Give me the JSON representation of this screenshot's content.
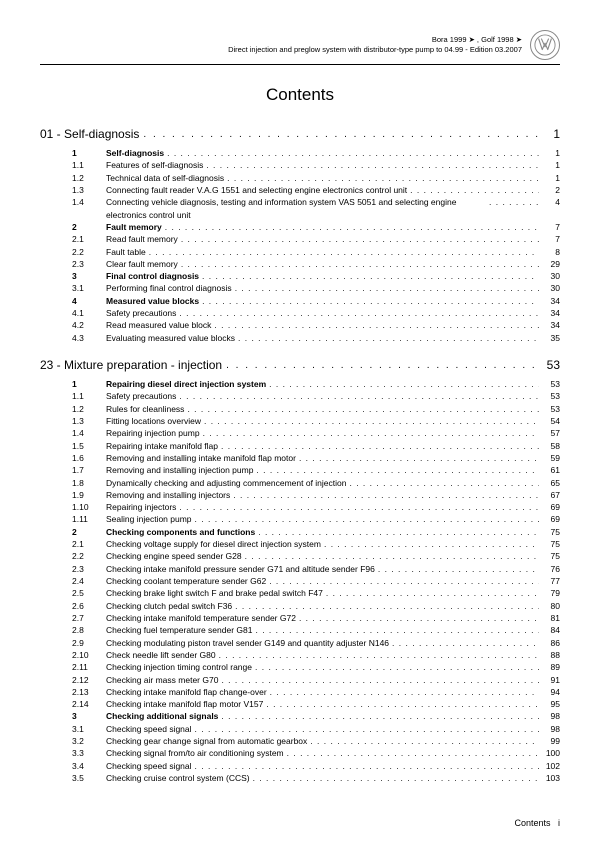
{
  "header": {
    "line1": "Bora 1999 ➤ , Golf 1998 ➤",
    "line2": "Direct injection and preglow system with distributor-type pump to 04.99 - Edition 03.2007"
  },
  "title": "Contents",
  "chapters": [
    {
      "num": "01",
      "title": "Self-diagnosis",
      "page": "1",
      "items": [
        {
          "n": "1",
          "t": "Self-diagnosis",
          "p": "1",
          "b": true
        },
        {
          "n": "1.1",
          "t": "Features of self-diagnosis",
          "p": "1"
        },
        {
          "n": "1.2",
          "t": "Technical data of self-diagnosis",
          "p": "1"
        },
        {
          "n": "1.3",
          "t": "Connecting fault reader V.A.G 1551 and selecting engine electronics control unit",
          "p": "2"
        },
        {
          "n": "1.4",
          "t": "Connecting vehicle diagnosis, testing and information system VAS 5051 and selecting engine electronics control unit",
          "p": "4",
          "ml": true
        },
        {
          "n": "2",
          "t": "Fault memory",
          "p": "7",
          "b": true
        },
        {
          "n": "2.1",
          "t": "Read fault memory",
          "p": "7"
        },
        {
          "n": "2.2",
          "t": "Fault table",
          "p": "8"
        },
        {
          "n": "2.3",
          "t": "Clear fault memory",
          "p": "29"
        },
        {
          "n": "3",
          "t": "Final control diagnosis",
          "p": "30",
          "b": true
        },
        {
          "n": "3.1",
          "t": "Performing final control diagnosis",
          "p": "30"
        },
        {
          "n": "4",
          "t": "Measured value blocks",
          "p": "34",
          "b": true
        },
        {
          "n": "4.1",
          "t": "Safety precautions",
          "p": "34"
        },
        {
          "n": "4.2",
          "t": "Read measured value block",
          "p": "34"
        },
        {
          "n": "4.3",
          "t": "Evaluating measured value blocks",
          "p": "35"
        }
      ]
    },
    {
      "num": "23",
      "title": "Mixture preparation - injection",
      "page": "53",
      "items": [
        {
          "n": "1",
          "t": "Repairing diesel direct injection system",
          "p": "53",
          "b": true
        },
        {
          "n": "1.1",
          "t": "Safety precautions",
          "p": "53"
        },
        {
          "n": "1.2",
          "t": "Rules for cleanliness",
          "p": "53"
        },
        {
          "n": "1.3",
          "t": "Fitting locations overview",
          "p": "54"
        },
        {
          "n": "1.4",
          "t": "Repairing injection pump",
          "p": "57"
        },
        {
          "n": "1.5",
          "t": "Repairing intake manifold flap",
          "p": "58"
        },
        {
          "n": "1.6",
          "t": "Removing and installing intake manifold flap motor",
          "p": "59"
        },
        {
          "n": "1.7",
          "t": "Removing and installing injection pump",
          "p": "61"
        },
        {
          "n": "1.8",
          "t": "Dynamically checking and adjusting commencement of injection",
          "p": "65"
        },
        {
          "n": "1.9",
          "t": "Removing and installing injectors",
          "p": "67"
        },
        {
          "n": "1.10",
          "t": "Repairing injectors",
          "p": "69"
        },
        {
          "n": "1.11",
          "t": "Sealing injection pump",
          "p": "69"
        },
        {
          "n": "2",
          "t": "Checking components and functions",
          "p": "75",
          "b": true
        },
        {
          "n": "2.1",
          "t": "Checking voltage supply for diesel direct injection system",
          "p": "75"
        },
        {
          "n": "2.2",
          "t": "Checking engine speed sender G28",
          "p": "75"
        },
        {
          "n": "2.3",
          "t": "Checking intake manifold pressure sender G71 and altitude sender F96",
          "p": "76"
        },
        {
          "n": "2.4",
          "t": "Checking coolant temperature sender G62",
          "p": "77"
        },
        {
          "n": "2.5",
          "t": "Checking brake light switch F and brake pedal switch F47",
          "p": "79"
        },
        {
          "n": "2.6",
          "t": "Checking clutch pedal switch F36",
          "p": "80"
        },
        {
          "n": "2.7",
          "t": "Checking intake manifold temperature sender G72",
          "p": "81"
        },
        {
          "n": "2.8",
          "t": "Checking fuel temperature sender G81",
          "p": "84"
        },
        {
          "n": "2.9",
          "t": "Checking modulating piston travel sender G149 and quantity adjuster N146",
          "p": "86"
        },
        {
          "n": "2.10",
          "t": "Check needle lift sender G80",
          "p": "88"
        },
        {
          "n": "2.11",
          "t": "Checking injection timing control range",
          "p": "89"
        },
        {
          "n": "2.12",
          "t": "Checking air mass meter G70",
          "p": "91"
        },
        {
          "n": "2.13",
          "t": "Checking intake manifold flap change-over",
          "p": "94"
        },
        {
          "n": "2.14",
          "t": "Checking intake manifold flap motor V157",
          "p": "95"
        },
        {
          "n": "3",
          "t": "Checking additional signals",
          "p": "98",
          "b": true
        },
        {
          "n": "3.1",
          "t": "Checking speed signal",
          "p": "98"
        },
        {
          "n": "3.2",
          "t": "Checking gear change signal from automatic gearbox",
          "p": "99"
        },
        {
          "n": "3.3",
          "t": "Checking signal from/to air conditioning system",
          "p": "100"
        },
        {
          "n": "3.4",
          "t": "Checking speed signal",
          "p": "102"
        },
        {
          "n": "3.5",
          "t": "Checking cruise control system (CCS)",
          "p": "103"
        }
      ]
    }
  ],
  "footer": {
    "label": "Contents",
    "page": "i"
  }
}
